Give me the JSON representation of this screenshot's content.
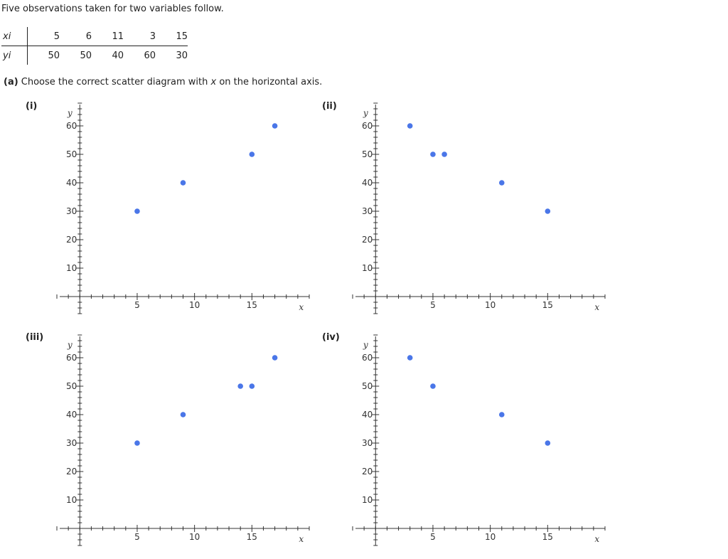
{
  "intro": "Five observations taken for two variables follow.",
  "table": {
    "x_label": "xi",
    "y_label": "yi",
    "x_values": [
      "5",
      "6",
      "11",
      "3",
      "15"
    ],
    "y_values": [
      "50",
      "50",
      "40",
      "60",
      "30"
    ]
  },
  "question": {
    "part": "(a)",
    "text_before": " Choose the correct scatter diagram with ",
    "var": "x",
    "text_after": " on the horizontal axis."
  },
  "chart_data": [
    {
      "type": "scatter",
      "label": "(i)",
      "x": [
        5,
        9,
        15,
        17
      ],
      "y": [
        30,
        40,
        50,
        60
      ],
      "xlabel": "x",
      "ylabel": "y",
      "xlim": [
        -2,
        20
      ],
      "ylim": [
        -7,
        68
      ],
      "x_ticks": [
        5,
        10,
        15
      ],
      "y_ticks": [
        10,
        20,
        30,
        40,
        50,
        60
      ],
      "color": "#4a76e8"
    },
    {
      "type": "scatter",
      "label": "(ii)",
      "x": [
        3,
        5,
        6,
        11,
        15
      ],
      "y": [
        60,
        50,
        50,
        40,
        30
      ],
      "xlabel": "x",
      "ylabel": "y",
      "xlim": [
        -2,
        20
      ],
      "ylim": [
        -7,
        68
      ],
      "x_ticks": [
        5,
        10,
        15
      ],
      "y_ticks": [
        10,
        20,
        30,
        40,
        50,
        60
      ],
      "color": "#4a76e8"
    },
    {
      "type": "scatter",
      "label": "(iii)",
      "x": [
        5,
        9,
        14,
        15,
        17
      ],
      "y": [
        30,
        40,
        50,
        50,
        60
      ],
      "xlabel": "x",
      "ylabel": "y",
      "xlim": [
        -2,
        20
      ],
      "ylim": [
        -7,
        68
      ],
      "x_ticks": [
        5,
        10,
        15
      ],
      "y_ticks": [
        10,
        20,
        30,
        40,
        50,
        60
      ],
      "color": "#4a76e8"
    },
    {
      "type": "scatter",
      "label": "(iv)",
      "x": [
        3,
        5,
        11,
        15
      ],
      "y": [
        60,
        50,
        40,
        30
      ],
      "xlabel": "x",
      "ylabel": "y",
      "xlim": [
        -2,
        20
      ],
      "ylim": [
        -7,
        68
      ],
      "x_ticks": [
        5,
        10,
        15
      ],
      "y_ticks": [
        10,
        20,
        30,
        40,
        50,
        60
      ],
      "color": "#4a76e8"
    }
  ]
}
